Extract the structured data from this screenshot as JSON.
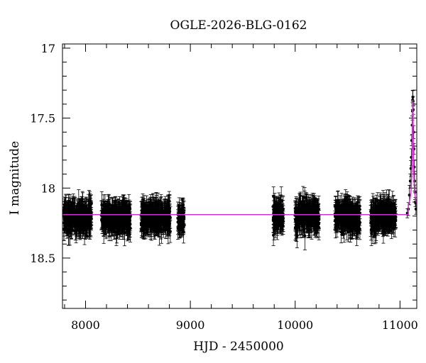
{
  "chart_data": {
    "type": "scatter",
    "title": "OGLE-2026-BLG-0162",
    "xlabel": "HJD - 2450000",
    "ylabel": "I magnitude",
    "xlim": [
      7780,
      11160
    ],
    "ylim": [
      18.86,
      16.97
    ],
    "y_inverted": true,
    "x_major_ticks": [
      8000,
      9000,
      10000,
      11000
    ],
    "x_tick_labels": [
      "8000",
      "9000",
      "10000",
      "11000"
    ],
    "x_minor_step": 200,
    "y_major_ticks": [
      17,
      17.5,
      18,
      18.5
    ],
    "y_tick_labels": [
      "17",
      "17.5",
      "18",
      "18.5"
    ],
    "y_minor_step": 0.1,
    "grid": false,
    "legend": "none",
    "colors": {
      "data": "#000000",
      "model": "#cc33cc"
    },
    "model": {
      "baseline_mag": 18.19,
      "peak_time": 11122,
      "peak_mag": 17.37,
      "rise_start": 11080,
      "post_peak_mag": 18.08
    },
    "observing_seasons": [
      {
        "x_start": 7790,
        "x_end": 8060,
        "mean_mag": 18.21,
        "scatter": 0.07,
        "typical_error": 0.08
      },
      {
        "x_start": 8150,
        "x_end": 8430,
        "mean_mag": 18.21,
        "scatter": 0.07,
        "typical_error": 0.08
      },
      {
        "x_start": 8530,
        "x_end": 8810,
        "mean_mag": 18.21,
        "scatter": 0.07,
        "typical_error": 0.08
      },
      {
        "x_start": 8880,
        "x_end": 8940,
        "mean_mag": 18.21,
        "scatter": 0.07,
        "typical_error": 0.08
      },
      {
        "x_start": 9790,
        "x_end": 9890,
        "mean_mag": 18.2,
        "scatter": 0.07,
        "typical_error": 0.08
      },
      {
        "x_start": 10000,
        "x_end": 10230,
        "mean_mag": 18.2,
        "scatter": 0.07,
        "typical_error": 0.08
      },
      {
        "x_start": 10380,
        "x_end": 10620,
        "mean_mag": 18.2,
        "scatter": 0.07,
        "typical_error": 0.08
      },
      {
        "x_start": 10720,
        "x_end": 10960,
        "mean_mag": 18.2,
        "scatter": 0.07,
        "typical_error": 0.08
      }
    ],
    "peak_points": [
      {
        "x": 11070,
        "y": 18.18
      },
      {
        "x": 11080,
        "y": 18.15
      },
      {
        "x": 11090,
        "y": 18.05
      },
      {
        "x": 11098,
        "y": 17.95
      },
      {
        "x": 11104,
        "y": 17.86
      },
      {
        "x": 11108,
        "y": 17.78
      },
      {
        "x": 11112,
        "y": 17.66
      },
      {
        "x": 11116,
        "y": 17.55
      },
      {
        "x": 11119,
        "y": 17.45
      },
      {
        "x": 11121,
        "y": 17.37
      },
      {
        "x": 11123,
        "y": 17.35
      },
      {
        "x": 11125,
        "y": 17.38
      },
      {
        "x": 11127,
        "y": 17.44
      },
      {
        "x": 11130,
        "y": 17.6
      },
      {
        "x": 11133,
        "y": 17.72
      },
      {
        "x": 11136,
        "y": 17.85
      },
      {
        "x": 11139,
        "y": 17.95
      },
      {
        "x": 11143,
        "y": 18.03
      },
      {
        "x": 11147,
        "y": 18.1
      },
      {
        "x": 11152,
        "y": 18.15
      }
    ]
  }
}
